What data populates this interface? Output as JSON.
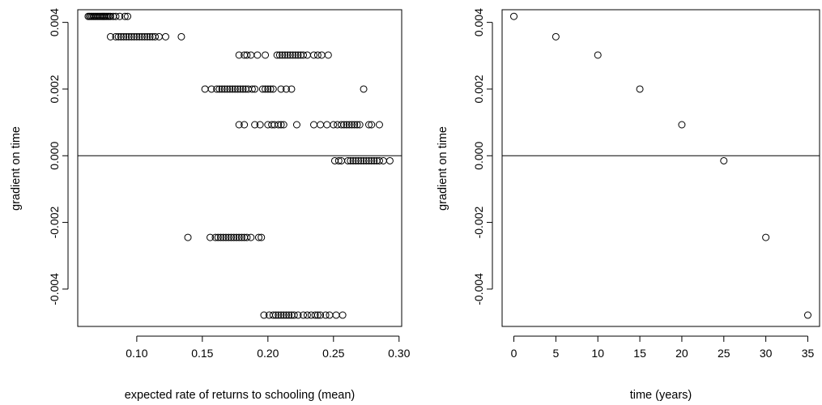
{
  "chart_data": [
    {
      "type": "scatter",
      "title": "",
      "xlabel": "expected rate of returns to schooling (mean)",
      "ylabel": "gradient on time",
      "xlim": [
        0.055,
        0.302
      ],
      "ylim": [
        -0.00512,
        0.00438
      ],
      "xticks": [
        "0.10",
        "0.15",
        "0.20",
        "0.25",
        "0.30"
      ],
      "xtick_values": [
        0.1,
        0.15,
        0.2,
        0.25,
        0.3
      ],
      "yticks": [
        "-0.004",
        "-0.002",
        "0.000",
        "0.002",
        "0.004"
      ],
      "ytick_values": [
        -0.004,
        -0.002,
        0.0,
        0.002,
        0.004
      ],
      "hline": 0.0,
      "levels": [
        {
          "y": 0.00418,
          "x": [
            0.063,
            0.064,
            0.065,
            0.066,
            0.067,
            0.068,
            0.069,
            0.07,
            0.071,
            0.072,
            0.073,
            0.074,
            0.075,
            0.076,
            0.077,
            0.078,
            0.079,
            0.08,
            0.082,
            0.084,
            0.087,
            0.091,
            0.093
          ]
        },
        {
          "y": 0.00357,
          "x": [
            0.08,
            0.084,
            0.086,
            0.088,
            0.09,
            0.092,
            0.094,
            0.096,
            0.098,
            0.1,
            0.102,
            0.104,
            0.106,
            0.108,
            0.11,
            0.112,
            0.114,
            0.117,
            0.122,
            0.134
          ]
        },
        {
          "y": 0.00302,
          "x": [
            0.178,
            0.182,
            0.184,
            0.187,
            0.192,
            0.198,
            0.207,
            0.209,
            0.211,
            0.213,
            0.215,
            0.217,
            0.219,
            0.221,
            0.223,
            0.225,
            0.227,
            0.23,
            0.235,
            0.238,
            0.241,
            0.246
          ]
        },
        {
          "y": 0.002,
          "x": [
            0.152,
            0.157,
            0.161,
            0.163,
            0.165,
            0.167,
            0.169,
            0.171,
            0.173,
            0.175,
            0.177,
            0.179,
            0.181,
            0.183,
            0.185,
            0.188,
            0.19,
            0.196,
            0.198,
            0.2,
            0.202,
            0.204,
            0.21,
            0.214,
            0.218,
            0.273
          ]
        },
        {
          "y": 0.00093,
          "x": [
            0.178,
            0.182,
            0.19,
            0.194,
            0.2,
            0.203,
            0.205,
            0.208,
            0.21,
            0.212,
            0.222,
            0.235,
            0.24,
            0.245,
            0.25,
            0.253,
            0.256,
            0.258,
            0.26,
            0.262,
            0.264,
            0.266,
            0.268,
            0.27,
            0.277,
            0.279,
            0.285
          ]
        },
        {
          "y": -0.00015,
          "x": [
            0.251,
            0.254,
            0.256,
            0.261,
            0.263,
            0.265,
            0.267,
            0.269,
            0.271,
            0.273,
            0.275,
            0.277,
            0.279,
            0.281,
            0.283,
            0.285,
            0.288,
            0.293
          ]
        },
        {
          "y": -0.00245,
          "x": [
            0.139,
            0.156,
            0.16,
            0.162,
            0.164,
            0.166,
            0.168,
            0.17,
            0.172,
            0.174,
            0.176,
            0.178,
            0.18,
            0.182,
            0.184,
            0.187,
            0.193,
            0.195
          ]
        },
        {
          "y": -0.00478,
          "x": [
            0.197,
            0.201,
            0.204,
            0.206,
            0.208,
            0.21,
            0.212,
            0.214,
            0.216,
            0.218,
            0.22,
            0.223,
            0.227,
            0.23,
            0.233,
            0.236,
            0.238,
            0.24,
            0.244,
            0.247,
            0.252,
            0.257
          ]
        }
      ]
    },
    {
      "type": "scatter",
      "title": "",
      "xlabel": "time (years)",
      "ylabel": "gradient on time",
      "xlim": [
        -1.4,
        36.4
      ],
      "ylim": [
        -0.00512,
        0.00438
      ],
      "xticks": [
        "0",
        "5",
        "10",
        "15",
        "20",
        "25",
        "30",
        "35"
      ],
      "xtick_values": [
        0,
        5,
        10,
        15,
        20,
        25,
        30,
        35
      ],
      "yticks": [
        "-0.004",
        "-0.002",
        "0.000",
        "0.002",
        "0.004"
      ],
      "ytick_values": [
        -0.004,
        -0.002,
        0.0,
        0.002,
        0.004
      ],
      "hline": 0.0,
      "x": [
        0,
        5,
        10,
        15,
        20,
        25,
        30,
        35
      ],
      "y": [
        0.00418,
        0.00357,
        0.00302,
        0.002,
        0.00093,
        -0.00015,
        -0.00245,
        -0.00478
      ]
    }
  ]
}
